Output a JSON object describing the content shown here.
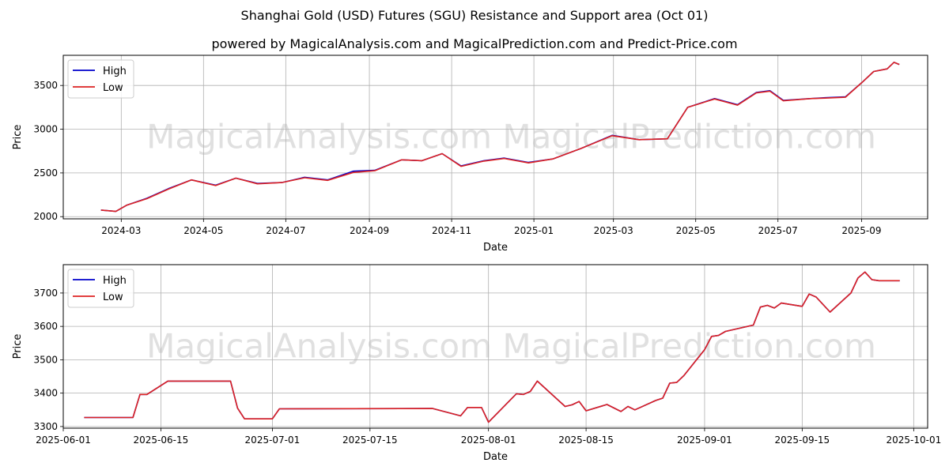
{
  "title": "Shanghai Gold (USD) Futures (SGU) Resistance and Support area (Oct 01)",
  "subtitle": "powered by MagicalAnalysis.com and MagicalPrediction.com and Predict-Price.com",
  "watermark": "MagicalAnalysis.com    MagicalPrediction.com",
  "colors": {
    "high": "#0000cc",
    "low": "#dd2222",
    "grid": "#b0b0b0",
    "watermark": "#e0e0e0"
  },
  "chart_data": [
    {
      "type": "line",
      "xlabel": "Date",
      "ylabel": "Price",
      "grid": true,
      "legend": "top-left",
      "xlim": [
        "2024-01-18",
        "2025-10-20"
      ],
      "ylim": [
        1975,
        3845
      ],
      "xticks": [
        "2024-03-01",
        "2024-05-01",
        "2024-07-01",
        "2024-09-01",
        "2024-11-01",
        "2025-01-01",
        "2025-03-01",
        "2025-05-01",
        "2025-07-01",
        "2025-09-01"
      ],
      "xtick_labels": [
        "2024-03",
        "2024-05",
        "2024-07",
        "2024-09",
        "2024-11",
        "2025-01",
        "2025-03",
        "2025-05",
        "2025-07",
        "2025-09"
      ],
      "yticks": [
        2000,
        2500,
        3000,
        3500
      ],
      "series": [
        {
          "name": "High",
          "color": "#0000cc",
          "x": [
            "2024-02-15",
            "2024-02-26",
            "2024-03-05",
            "2024-03-20",
            "2024-04-05",
            "2024-04-22",
            "2024-05-10",
            "2024-05-25",
            "2024-06-10",
            "2024-06-28",
            "2024-07-15",
            "2024-08-01",
            "2024-08-20",
            "2024-09-05",
            "2024-09-25",
            "2024-10-10",
            "2024-10-25",
            "2024-11-08",
            "2024-11-25",
            "2024-12-10",
            "2024-12-28",
            "2025-01-15",
            "2025-02-05",
            "2025-02-28",
            "2025-03-20",
            "2025-04-10",
            "2025-04-25",
            "2025-05-15",
            "2025-06-01",
            "2025-06-15",
            "2025-06-25",
            "2025-07-05",
            "2025-07-25",
            "2025-08-05",
            "2025-08-20",
            "2025-09-01",
            "2025-09-10",
            "2025-09-20",
            "2025-09-25",
            "2025-09-29"
          ],
          "y": [
            2075,
            2060,
            2130,
            2210,
            2320,
            2420,
            2360,
            2440,
            2380,
            2390,
            2450,
            2420,
            2520,
            2530,
            2650,
            2640,
            2720,
            2580,
            2640,
            2670,
            2620,
            2660,
            2780,
            2930,
            2880,
            2890,
            3250,
            3350,
            3280,
            3420,
            3440,
            3330,
            3350,
            3360,
            3370,
            3530,
            3660,
            3690,
            3765,
            3740
          ]
        },
        {
          "name": "Low",
          "color": "#dd2222",
          "x": [
            "2024-02-15",
            "2024-02-26",
            "2024-03-05",
            "2024-03-20",
            "2024-04-05",
            "2024-04-22",
            "2024-05-10",
            "2024-05-25",
            "2024-06-10",
            "2024-06-28",
            "2024-07-15",
            "2024-08-01",
            "2024-08-20",
            "2024-09-05",
            "2024-09-25",
            "2024-10-10",
            "2024-10-25",
            "2024-11-08",
            "2024-11-25",
            "2024-12-10",
            "2024-12-28",
            "2025-01-15",
            "2025-02-05",
            "2025-02-28",
            "2025-03-20",
            "2025-04-10",
            "2025-04-25",
            "2025-05-15",
            "2025-06-01",
            "2025-06-15",
            "2025-06-25",
            "2025-07-05",
            "2025-07-25",
            "2025-08-05",
            "2025-08-20",
            "2025-09-01",
            "2025-09-10",
            "2025-09-20",
            "2025-09-25",
            "2025-09-29"
          ],
          "y": [
            2075,
            2060,
            2130,
            2205,
            2315,
            2420,
            2355,
            2440,
            2375,
            2390,
            2445,
            2415,
            2505,
            2525,
            2650,
            2640,
            2720,
            2575,
            2635,
            2665,
            2615,
            2660,
            2780,
            2925,
            2880,
            2890,
            3250,
            3345,
            3275,
            3415,
            3435,
            3325,
            3350,
            3355,
            3365,
            3530,
            3660,
            3690,
            3765,
            3740
          ]
        }
      ]
    },
    {
      "type": "line",
      "xlabel": "Date",
      "ylabel": "Price",
      "grid": true,
      "legend": "top-left",
      "xlim": [
        "2025-06-01",
        "2025-10-03"
      ],
      "ylim": [
        3295,
        3785
      ],
      "xticks": [
        "2025-06-01",
        "2025-06-15",
        "2025-07-01",
        "2025-07-15",
        "2025-08-01",
        "2025-08-15",
        "2025-09-01",
        "2025-09-15",
        "2025-10-01"
      ],
      "xtick_labels": [
        "2025-06-01",
        "2025-06-15",
        "2025-07-01",
        "2025-07-15",
        "2025-08-01",
        "2025-08-15",
        "2025-09-01",
        "2025-09-15",
        "2025-10-01"
      ],
      "yticks": [
        3300,
        3400,
        3500,
        3600,
        3700
      ],
      "series": [
        {
          "name": "High",
          "color": "#0000cc",
          "x": [
            "2025-06-04",
            "2025-06-11",
            "2025-06-12",
            "2025-06-13",
            "2025-06-16",
            "2025-06-25",
            "2025-06-26",
            "2025-06-27",
            "2025-07-01",
            "2025-07-02",
            "2025-07-24",
            "2025-07-28",
            "2025-07-29",
            "2025-07-31",
            "2025-08-01",
            "2025-08-05",
            "2025-08-06",
            "2025-08-07",
            "2025-08-08",
            "2025-08-12",
            "2025-08-13",
            "2025-08-14",
            "2025-08-15",
            "2025-08-18",
            "2025-08-20",
            "2025-08-21",
            "2025-08-22",
            "2025-08-25",
            "2025-08-26",
            "2025-08-27",
            "2025-08-28",
            "2025-08-29",
            "2025-09-01",
            "2025-09-02",
            "2025-09-03",
            "2025-09-04",
            "2025-09-08",
            "2025-09-09",
            "2025-09-10",
            "2025-09-11",
            "2025-09-12",
            "2025-09-15",
            "2025-09-16",
            "2025-09-17",
            "2025-09-19",
            "2025-09-22",
            "2025-09-23",
            "2025-09-24",
            "2025-09-25",
            "2025-09-26",
            "2025-09-29"
          ],
          "y": [
            3327,
            3327,
            3396,
            3396,
            3436,
            3436,
            3355,
            3323,
            3323,
            3353,
            3354,
            3332,
            3357,
            3357,
            3313,
            3398,
            3396,
            3405,
            3436,
            3360,
            3365,
            3375,
            3347,
            3366,
            3345,
            3360,
            3350,
            3378,
            3385,
            3430,
            3432,
            3452,
            3530,
            3570,
            3573,
            3585,
            3604,
            3658,
            3663,
            3655,
            3670,
            3660,
            3697,
            3688,
            3643,
            3700,
            3745,
            3763,
            3740,
            3737,
            3737
          ]
        },
        {
          "name": "Low",
          "color": "#dd2222",
          "x": [
            "2025-06-04",
            "2025-06-11",
            "2025-06-12",
            "2025-06-13",
            "2025-06-16",
            "2025-06-25",
            "2025-06-26",
            "2025-06-27",
            "2025-07-01",
            "2025-07-02",
            "2025-07-24",
            "2025-07-28",
            "2025-07-29",
            "2025-07-31",
            "2025-08-01",
            "2025-08-05",
            "2025-08-06",
            "2025-08-07",
            "2025-08-08",
            "2025-08-12",
            "2025-08-13",
            "2025-08-14",
            "2025-08-15",
            "2025-08-18",
            "2025-08-20",
            "2025-08-21",
            "2025-08-22",
            "2025-08-25",
            "2025-08-26",
            "2025-08-27",
            "2025-08-28",
            "2025-08-29",
            "2025-09-01",
            "2025-09-02",
            "2025-09-03",
            "2025-09-04",
            "2025-09-08",
            "2025-09-09",
            "2025-09-10",
            "2025-09-11",
            "2025-09-12",
            "2025-09-15",
            "2025-09-16",
            "2025-09-17",
            "2025-09-19",
            "2025-09-22",
            "2025-09-23",
            "2025-09-24",
            "2025-09-25",
            "2025-09-26",
            "2025-09-29"
          ],
          "y": [
            3327,
            3327,
            3396,
            3396,
            3436,
            3436,
            3355,
            3323,
            3323,
            3353,
            3354,
            3332,
            3357,
            3357,
            3313,
            3398,
            3396,
            3405,
            3436,
            3360,
            3365,
            3375,
            3347,
            3366,
            3345,
            3360,
            3350,
            3378,
            3385,
            3430,
            3432,
            3452,
            3530,
            3570,
            3573,
            3585,
            3604,
            3658,
            3663,
            3655,
            3670,
            3660,
            3697,
            3688,
            3643,
            3700,
            3745,
            3763,
            3740,
            3737,
            3737
          ]
        }
      ]
    }
  ]
}
